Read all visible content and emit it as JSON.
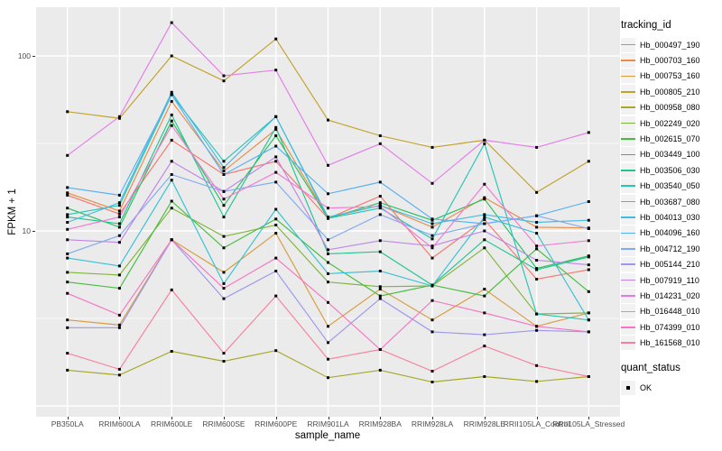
{
  "figure": {
    "background": "#FFFFFF",
    "panel_background": "#EBEBEB",
    "grid_color": "#FFFFFF",
    "tick_color": "#333333",
    "tick_label_color": "#4D4D4D",
    "point_color": "#000000"
  },
  "axes": {
    "x_title": "sample_name",
    "y_title": "FPKM + 1",
    "y_ticks": [
      {
        "label": "100",
        "value": 100
      },
      {
        "label": "10",
        "value": 10
      }
    ]
  },
  "legend": {
    "tracking_title": "tracking_id",
    "quant_title": "quant_status",
    "quant_items": [
      {
        "label": "OK",
        "marker": "black-square"
      }
    ]
  },
  "chart_data": {
    "type": "line",
    "title": "",
    "xlabel": "sample_name",
    "ylabel": "FPKM + 1",
    "y_scale": "log10",
    "ylim": [
      0.87,
      185
    ],
    "grid": true,
    "legend_position": "right",
    "marker": "black-square",
    "categories": [
      "PB350LA",
      "RRIM600LA",
      "RRIM600LE",
      "RRIM600SE",
      "RRIM600PE",
      "RRIM901LA",
      "RRIM928BA",
      "RRIM928LA",
      "RRIM928LE",
      "RRII105LA_Control",
      "RRII105LA_Stressed"
    ],
    "major_gridlines_y": [
      1,
      10,
      100
    ],
    "minor_gridlines_y": [
      3.162,
      31.62
    ],
    "series": [
      {
        "name": "Hb_000497_190",
        "color": "#F8766D",
        "values": [
          16,
          12.5,
          33,
          21,
          25,
          11.8,
          15.8,
          7,
          11.6,
          5.3,
          6
        ]
      },
      {
        "name": "Hb_000703_160",
        "color": "#EB8B44",
        "values": [
          16.5,
          13,
          55,
          22,
          38,
          11.9,
          14,
          10.5,
          15.5,
          10.5,
          10.4
        ]
      },
      {
        "name": "Hb_000753_160",
        "color": "#D89C3F",
        "values": [
          3.1,
          2.9,
          8.9,
          5.8,
          9.7,
          2.85,
          4.65,
          3.1,
          4.65,
          2.85,
          3.4
        ]
      },
      {
        "name": "Hb_000805_210",
        "color": "#C3A22B",
        "values": [
          48,
          44,
          100,
          72,
          125,
          43,
          35,
          30,
          33,
          16.6,
          25
        ]
      },
      {
        "name": "Hb_000958_080",
        "color": "#A7A826",
        "values": [
          1.6,
          1.5,
          2.05,
          1.8,
          2.07,
          1.45,
          1.6,
          1.37,
          1.47,
          1.38,
          1.47
        ]
      },
      {
        "name": "Hb_002249_020",
        "color": "#82B53C",
        "values": [
          5.8,
          5.6,
          13.5,
          9.3,
          10.8,
          5.1,
          4.8,
          4.85,
          8,
          3.35,
          3.4
        ]
      },
      {
        "name": "Hb_002615_070",
        "color": "#47BD40",
        "values": [
          5.1,
          4.7,
          14.8,
          8,
          11.7,
          6.6,
          4.25,
          4.9,
          4.25,
          7.9,
          4.5
        ]
      },
      {
        "name": "Hb_003449_100",
        "color": "#2AC05E",
        "values": [
          13.5,
          10.5,
          42.5,
          14,
          35,
          11.8,
          14.5,
          11.5,
          15.2,
          6.1,
          7.2
        ]
      },
      {
        "name": "Hb_003506_030",
        "color": "#23C492",
        "values": [
          12,
          11,
          46,
          12,
          39,
          7.4,
          7.6,
          4.9,
          8.9,
          6,
          7.1
        ]
      },
      {
        "name": "Hb_003540_050",
        "color": "#27C5B7",
        "values": [
          12.4,
          14,
          60,
          25,
          45,
          11.8,
          13.5,
          9,
          31.5,
          3.35,
          3.1
        ]
      },
      {
        "name": "Hb_003687_080",
        "color": "#35C2D5",
        "values": [
          7,
          6.3,
          19.5,
          5,
          13.3,
          5.7,
          5.9,
          4.85,
          12,
          9.7,
          3.1
        ]
      },
      {
        "name": "Hb_004013_030",
        "color": "#44BBE2",
        "values": [
          11.2,
          14.5,
          62,
          23,
          45,
          12,
          14,
          11,
          12.4,
          11.2,
          11.5
        ]
      },
      {
        "name": "Hb_004096_160",
        "color": "#57B0F4",
        "values": [
          17.7,
          16,
          60,
          21,
          30.5,
          16.3,
          19,
          11.7,
          11,
          12.2,
          14.7
        ]
      },
      {
        "name": "Hb_004712_190",
        "color": "#80AAF2",
        "values": [
          7.4,
          9.4,
          21,
          16.8,
          19,
          8.9,
          12.4,
          9.4,
          11,
          12.2,
          10.3
        ]
      },
      {
        "name": "Hb_005144_210",
        "color": "#9D97EC",
        "values": [
          2.8,
          2.8,
          8.9,
          4.1,
          5.9,
          2.3,
          4.1,
          2.65,
          2.55,
          2.7,
          2.65
        ]
      },
      {
        "name": "Hb_007919_110",
        "color": "#BE86E8",
        "values": [
          8.9,
          8.6,
          25,
          16.8,
          26.5,
          7.8,
          8.8,
          8.2,
          10,
          6.8,
          6.4
        ]
      },
      {
        "name": "Hb_014231_020",
        "color": "#E37CEA",
        "values": [
          27,
          45,
          155,
          77,
          83,
          23.7,
          31.5,
          18.7,
          33,
          30,
          36.5
        ]
      },
      {
        "name": "Hb_016448_010",
        "color": "#F27BD4",
        "values": [
          10.2,
          12,
          40,
          15.2,
          21.6,
          13.5,
          13.8,
          8,
          18.5,
          8.2,
          8.8
        ]
      },
      {
        "name": "Hb_074399_010",
        "color": "#F775C1",
        "values": [
          4.4,
          3.3,
          8.9,
          4.7,
          7,
          3.9,
          2.1,
          4,
          3.4,
          2.85,
          2.65
        ]
      },
      {
        "name": "Hb_161568_010",
        "color": "#F8809F",
        "values": [
          2,
          1.62,
          4.6,
          2,
          4.25,
          1.85,
          2.1,
          1.58,
          2.2,
          1.7,
          1.47
        ]
      }
    ]
  }
}
